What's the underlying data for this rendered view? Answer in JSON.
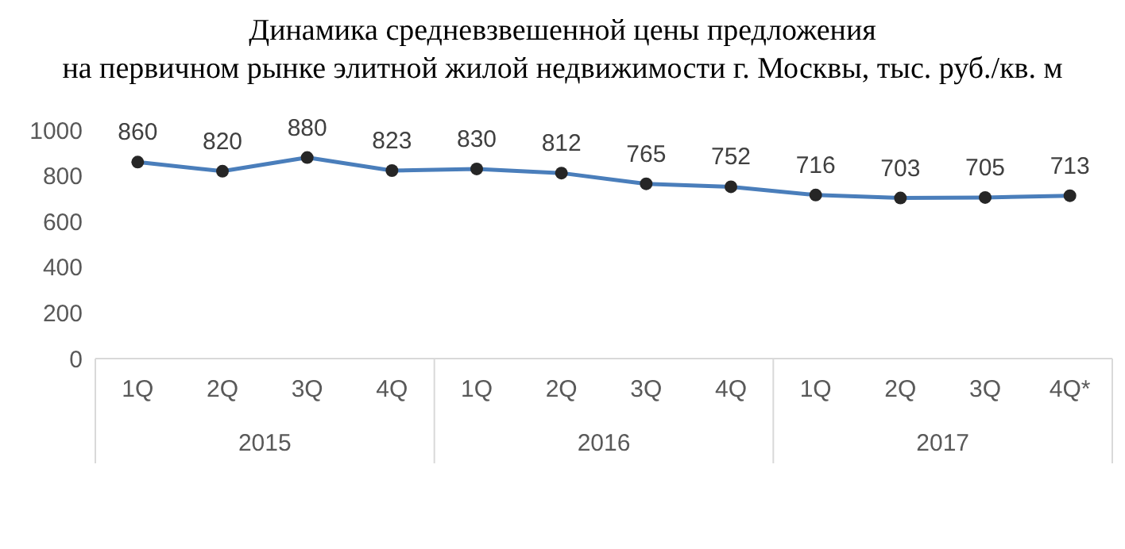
{
  "chart_data": {
    "type": "line",
    "title": "Динамика средневзвешенной цены предложения\nна первичном рынке элитной жилой недвижимости г. Москвы, тыс. руб./кв. м",
    "categories": [
      "1Q",
      "2Q",
      "3Q",
      "4Q",
      "1Q",
      "2Q",
      "3Q",
      "4Q",
      "1Q",
      "2Q",
      "3Q",
      "4Q*"
    ],
    "annotations": [
      "2015",
      "2016",
      "2017"
    ],
    "series": [
      {
        "color": "#4a7ebb",
        "values": [
          860,
          820,
          880,
          823,
          830,
          812,
          765,
          752,
          716,
          703,
          705,
          713
        ]
      }
    ],
    "ylim": [
      0,
      1000
    ],
    "yticks": [
      0,
      200,
      400,
      600,
      800,
      1000
    ],
    "grid": false,
    "legend": false,
    "marker": "circle",
    "line_style": "solid",
    "data_labels": true
  }
}
